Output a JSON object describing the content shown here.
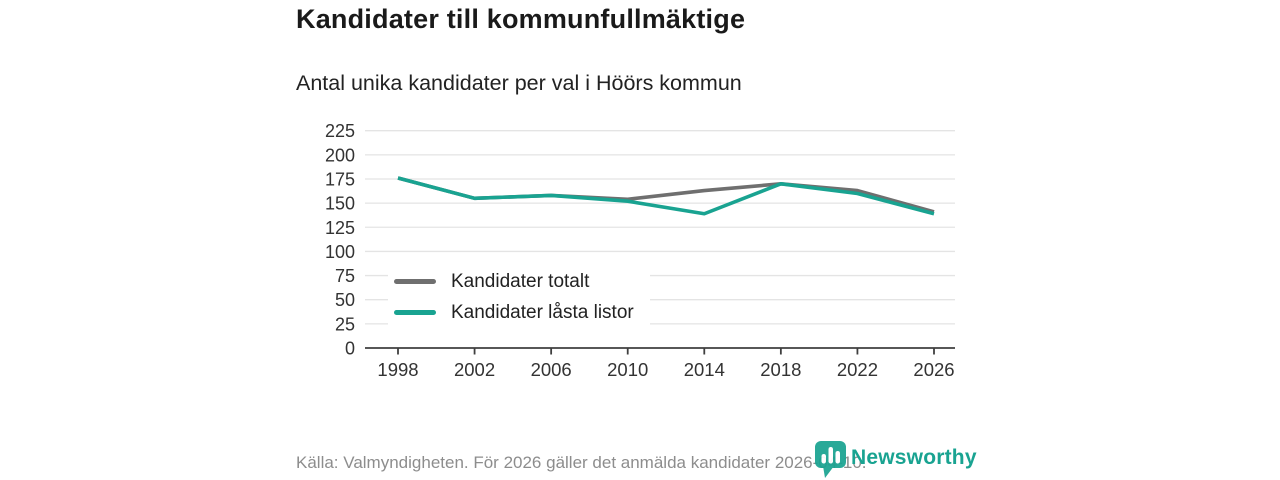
{
  "header": {
    "title": "Kandidater till kommunfullmäktige",
    "subtitle": "Antal unika kandidater per val i Höörs kommun"
  },
  "chart_data": {
    "type": "line",
    "x": [
      1998,
      2002,
      2006,
      2010,
      2014,
      2018,
      2022,
      2026
    ],
    "series": [
      {
        "name": "Kandidater totalt",
        "color": "#6f6f6f",
        "values": [
          176,
          155,
          158,
          154,
          163,
          170,
          163,
          141
        ]
      },
      {
        "name": "Kandidater låsta listor",
        "color": "#19a391",
        "values": [
          176,
          155,
          158,
          152,
          139,
          170,
          160,
          139
        ]
      }
    ],
    "ylim": [
      0,
      225
    ],
    "yticks": [
      0,
      25,
      50,
      75,
      100,
      125,
      150,
      175,
      200,
      225
    ],
    "grid": true,
    "legend_position": "inside-lower-left",
    "colors": {
      "gridline": "#e4e4e4",
      "axis": "#3f3f3f",
      "tick_label": "#333333"
    }
  },
  "footer": {
    "source": "Källa: Valmyndigheten. För 2026 gäller det anmälda kandidater 2026-04-10.",
    "brand": "Newsworthy",
    "brand_color": "#19a391"
  }
}
